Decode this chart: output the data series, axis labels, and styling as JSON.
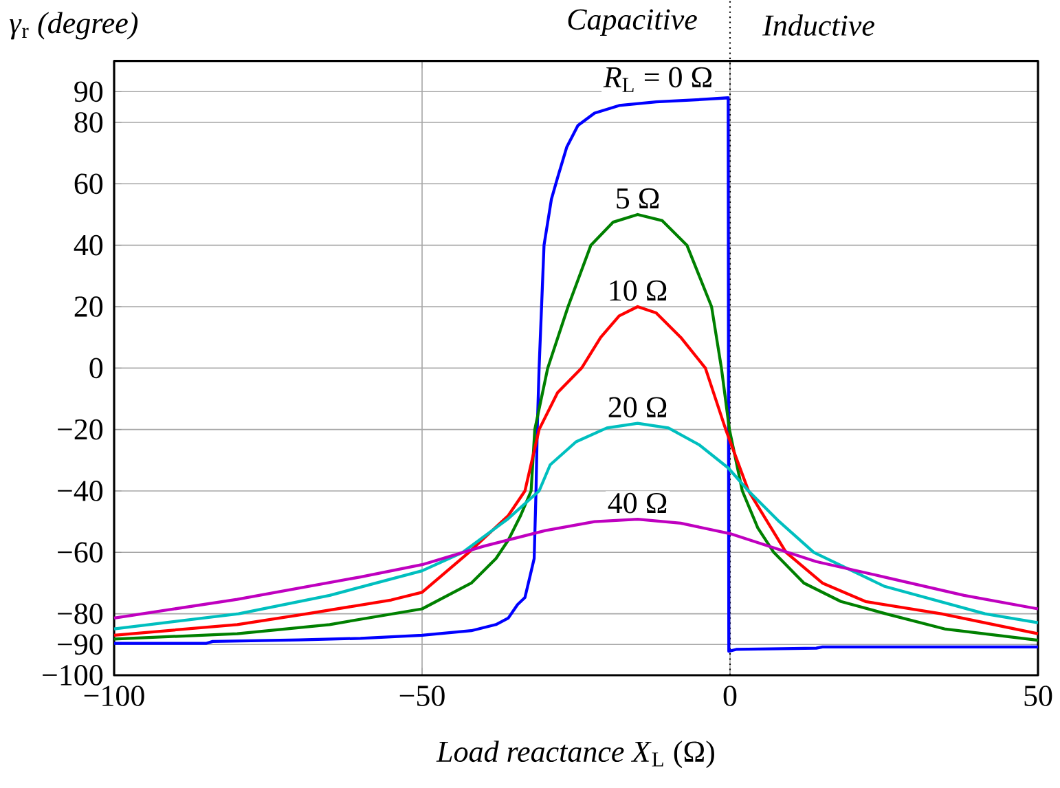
{
  "chart_data": {
    "type": "line",
    "xlabel": "*Load reactance X*$_{L}$ (Ω)",
    "ylabel": "*γ*$_{r}$ *(degree)*",
    "xlim": [
      -100,
      50
    ],
    "ylim": [
      -100,
      100
    ],
    "xticks": [
      {
        "value": -100,
        "label": "−100"
      },
      {
        "value": -50,
        "label": "−50"
      },
      0,
      50
    ],
    "yticks": [
      {
        "value": -100,
        "label": "−100"
      },
      {
        "value": -90,
        "label": "−90"
      },
      {
        "value": -80,
        "label": "−80"
      },
      {
        "value": -60,
        "label": "−60"
      },
      {
        "value": -40,
        "label": "−40"
      },
      {
        "value": -20,
        "label": "−20"
      },
      0,
      20,
      40,
      60,
      80,
      90
    ],
    "grid": true,
    "legend": false,
    "marker": "none",
    "line_style": "solid",
    "ref_lines": [
      {
        "axis": "x",
        "value": 0,
        "line_style": "dotted",
        "color": "#000000"
      }
    ],
    "annotations": [
      "*Capacitive*",
      "*Inductive*"
    ],
    "series": [
      {
        "name": "*R*$_{L}$ = 0 Ω",
        "color": "#0000ff",
        "x": [
          -100,
          -85,
          -84,
          -70,
          -60,
          -50,
          -42,
          -38,
          -36,
          -34.5,
          -33.3,
          -32.5,
          -31.8,
          -31.5,
          -31.3,
          -31,
          -30.2,
          -29,
          -28,
          -26.5,
          -24.7,
          -22,
          -18,
          -12,
          -6,
          -0.3,
          -0.2,
          1,
          14,
          15,
          50
        ],
        "values": [
          -89.6,
          -89.6,
          -89,
          -88.5,
          -88,
          -87,
          -85.5,
          -83.5,
          -81.4,
          -77,
          -74.7,
          -68,
          -62,
          -40,
          -20,
          0,
          40,
          55,
          62,
          72,
          79,
          83,
          85.5,
          86.7,
          87.3,
          88,
          -92.2,
          -91.6,
          -91.2,
          -90.8,
          -90.8
        ]
      },
      {
        "name": "5 Ω",
        "color": "#008000",
        "x": [
          -100,
          -80,
          -65,
          -50,
          -42,
          -38,
          -36,
          -34,
          -32.3,
          -31.7,
          -29.6,
          -26.3,
          -22.6,
          -19,
          -15,
          -11,
          -7,
          -3,
          -1.4,
          -0.1,
          2,
          4.5,
          7.1,
          12,
          18,
          25.3,
          35,
          50
        ],
        "values": [
          -88.2,
          -86.5,
          -83.5,
          -78.4,
          -70,
          -62,
          -56,
          -48,
          -40,
          -20,
          0,
          20,
          40,
          47.5,
          50,
          48,
          40,
          20,
          0,
          -20,
          -40,
          -52,
          -60,
          -70,
          -76,
          -80,
          -85,
          -88.6
        ]
      },
      {
        "name": "10 Ω",
        "color": "#ff0000",
        "x": [
          -100,
          -80,
          -68.7,
          -55,
          -50,
          -42.4,
          -36,
          -33.3,
          -31,
          -28,
          -24.1,
          -21,
          -18,
          -15,
          -12,
          -8,
          -4,
          -0.7,
          3,
          9.1,
          15,
          22,
          34.3,
          50
        ],
        "values": [
          -87,
          -83.5,
          -80,
          -75.5,
          -73,
          -60,
          -48,
          -40,
          -20,
          -8,
          0,
          10,
          17,
          20,
          18,
          10,
          0,
          -20,
          -40,
          -60,
          -70,
          -76,
          -80,
          -86.5
        ]
      },
      {
        "name": "20 Ω",
        "color": "#00bfbf",
        "x": [
          -100,
          -79.8,
          -65,
          -50,
          -43.4,
          -36,
          -31,
          -29.2,
          -25,
          -20,
          -15,
          -10,
          -5,
          -0.3,
          3,
          8,
          13.6,
          25,
          41.4,
          50
        ],
        "values": [
          -84.9,
          -80,
          -74,
          -66,
          -60,
          -49,
          -40,
          -31.5,
          -24,
          -19.5,
          -18,
          -19.5,
          -25,
          -32.5,
          -40,
          -50,
          -60,
          -71,
          -80,
          -82.9
        ]
      },
      {
        "name": "40 Ω",
        "color": "#bf00bf",
        "x": [
          -100,
          -80,
          -60,
          -50,
          -40,
          -30,
          -22,
          -15,
          -8,
          0,
          14,
          25,
          38,
          50
        ],
        "values": [
          -81.4,
          -75.3,
          -68,
          -64,
          -58,
          -52.9,
          -50,
          -49.2,
          -50.5,
          -53.9,
          -63,
          -68,
          -74,
          -78.4
        ]
      }
    ]
  }
}
